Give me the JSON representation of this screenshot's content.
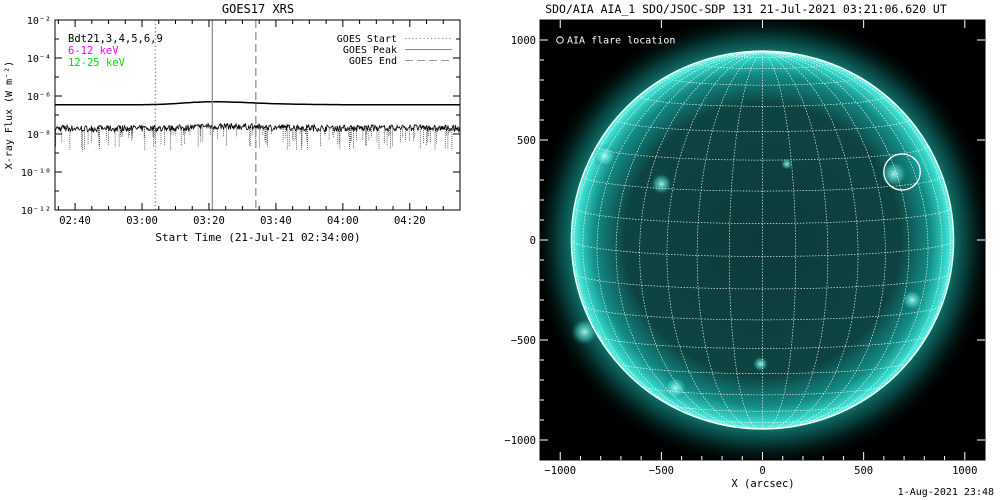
{
  "chart_data": [
    {
      "type": "line",
      "title": "GOES17 XRS",
      "xlabel": "Start Time (21-Jul-21 02:34:00)",
      "ylabel": "X-ray Flux (W m⁻²)",
      "x_range_utc": [
        "02:34:00",
        "04:35:00"
      ],
      "xticks": [
        "02:40",
        "03:00",
        "03:20",
        "03:40",
        "04:00",
        "04:20"
      ],
      "ylim": [
        1e-12,
        0.01
      ],
      "yscale": "log",
      "yticks": [
        {
          "value": 1e-12,
          "label": "10⁻¹²"
        },
        {
          "value": 1e-10,
          "label": "10⁻¹⁰"
        },
        {
          "value": 1e-08,
          "label": "10⁻⁸"
        },
        {
          "value": 1e-06,
          "label": "10⁻⁶"
        },
        {
          "value": 0.0001,
          "label": "10⁻⁴"
        },
        {
          "value": 0.01,
          "label": "10⁻²"
        }
      ],
      "detector_label": "Bdt21,3,4,5,6,9",
      "series": [
        {
          "name": "6-12 keV",
          "color": "#ff00ff",
          "style": "solid",
          "points": [
            [
              "02:34",
              3.5e-07
            ],
            [
              "03:00",
              3.5e-07
            ],
            [
              "03:05",
              3.6e-07
            ],
            [
              "03:10",
              4e-07
            ],
            [
              "03:15",
              4.6e-07
            ],
            [
              "03:20",
              5e-07
            ],
            [
              "03:25",
              4.9e-07
            ],
            [
              "03:30",
              4.6e-07
            ],
            [
              "03:35",
              4.2e-07
            ],
            [
              "03:40",
              3.9e-07
            ],
            [
              "03:50",
              3.6e-07
            ],
            [
              "04:00",
              3.5e-07
            ],
            [
              "04:20",
              3.5e-07
            ],
            [
              "04:35",
              3.5e-07
            ]
          ]
        },
        {
          "name": "12-25 keV",
          "color": "#00dd00",
          "style": "noisy",
          "points": [
            [
              "02:34",
              2e-08
            ],
            [
              "03:00",
              1.9e-08
            ],
            [
              "03:10",
              2e-08
            ],
            [
              "03:20",
              2.6e-08
            ],
            [
              "03:30",
              2.5e-08
            ],
            [
              "03:40",
              2.2e-08
            ],
            [
              "04:00",
              2e-08
            ],
            [
              "04:20",
              2.1e-08
            ],
            [
              "04:35",
              2e-08
            ]
          ]
        }
      ],
      "markers": [
        {
          "name": "GOES Start",
          "time": "03:04",
          "style": "dotted",
          "color": "#888888"
        },
        {
          "name": "GOES Peak",
          "time": "03:21",
          "style": "solid",
          "color": "#888888"
        },
        {
          "name": "GOES End",
          "time": "03:34",
          "style": "dashed",
          "color": "#999999"
        }
      ],
      "legend_placement": "top-right"
    },
    {
      "type": "image",
      "title": "SDO/AIA AIA_1 SDO/JSOC-SDP 131 21-Jul-2021 03:21:06.620 UT",
      "xlabel": "X (arcsec)",
      "ylabel": "",
      "xlim": [
        -1100,
        1100
      ],
      "ylim": [
        -1100,
        1100
      ],
      "xticks": [
        -1000,
        -500,
        0,
        500,
        1000
      ],
      "yticks": [
        -1000,
        -500,
        0,
        500,
        1000
      ],
      "solar_radius_arcsec": 945,
      "grid": "heliographic 10-degree",
      "colormap": "teal",
      "legend_text": "AIA flare location",
      "legend_placement": "top-left",
      "flare_location_arcsec": [
        690,
        340
      ],
      "flare_marker_radius_arcsec": 90
    }
  ],
  "footer": {
    "timestamp": "1-Aug-2021 23:48"
  }
}
